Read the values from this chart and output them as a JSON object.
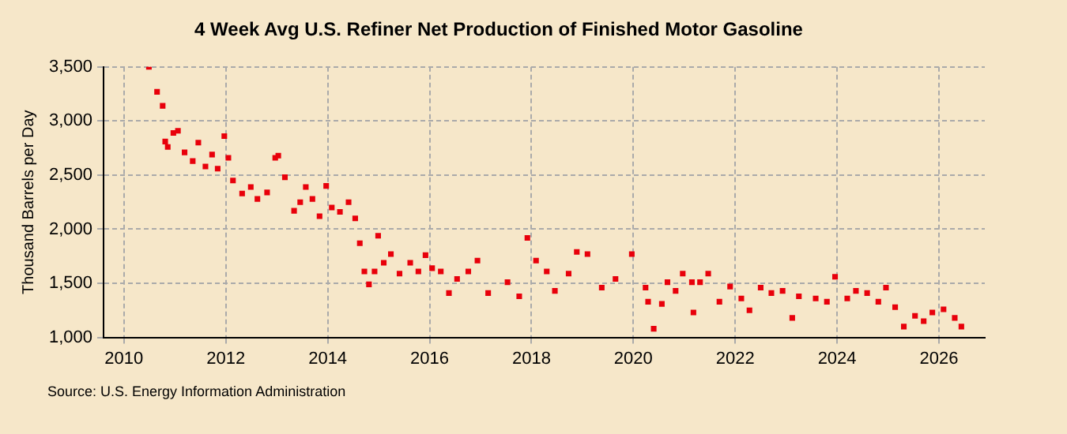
{
  "chart_data": {
    "type": "scatter",
    "title": "4 Week Avg U.S. Refiner Net Production of Finished Motor Gasoline",
    "ylabel": "Thousand Barrels per Day",
    "annotations": [
      "Source: U.S. Energy Information Administration"
    ],
    "x": [
      2010.49,
      2010.65,
      2010.76,
      2010.81,
      2010.86,
      2010.97,
      2011.06,
      2011.19,
      2011.35,
      2011.46,
      2011.6,
      2011.73,
      2011.84,
      2011.97,
      2012.05,
      2012.14,
      2012.32,
      2012.49,
      2012.62,
      2012.81,
      2012.97,
      2013.03,
      2013.16,
      2013.34,
      2013.46,
      2013.57,
      2013.7,
      2013.84,
      2013.97,
      2014.08,
      2014.24,
      2014.41,
      2014.54,
      2014.63,
      2014.72,
      2014.81,
      2014.92,
      2014.99,
      2015.1,
      2015.24,
      2015.41,
      2015.62,
      2015.78,
      2015.92,
      2016.05,
      2016.22,
      2016.38,
      2016.54,
      2016.76,
      2016.94,
      2017.15,
      2017.53,
      2017.76,
      2017.92,
      2018.09,
      2018.3,
      2018.46,
      2018.73,
      2018.89,
      2019.1,
      2019.38,
      2019.65,
      2019.97,
      2020.24,
      2020.29,
      2020.4,
      2020.56,
      2020.67,
      2020.83,
      2020.97,
      2021.15,
      2021.18,
      2021.31,
      2021.47,
      2021.69,
      2021.9,
      2022.12,
      2022.28,
      2022.5,
      2022.71,
      2022.93,
      2023.12,
      2023.25,
      2023.58,
      2023.8,
      2023.96,
      2024.2,
      2024.37,
      2024.59,
      2024.81,
      2024.96,
      2025.14,
      2025.31,
      2025.53,
      2025.7,
      2025.87,
      2026.09,
      2026.31,
      2026.44
    ],
    "series": [
      {
        "color": "#e8000b",
        "values": [
          3500,
          3270,
          3140,
          2810,
          2760,
          2890,
          2910,
          2710,
          2630,
          2800,
          2580,
          2690,
          2560,
          2860,
          2660,
          2450,
          2330,
          2390,
          2280,
          2340,
          2660,
          2680,
          2480,
          2170,
          2250,
          2390,
          2280,
          2120,
          2400,
          2200,
          2160,
          2250,
          2100,
          1870,
          1610,
          1490,
          1610,
          1940,
          1690,
          1770,
          1590,
          1690,
          1610,
          1760,
          1640,
          1610,
          1410,
          1540,
          1610,
          1710,
          1410,
          1510,
          1380,
          1920,
          1710,
          1610,
          1430,
          1590,
          1790,
          1770,
          1460,
          1540,
          1770,
          1460,
          1330,
          1080,
          1310,
          1510,
          1430,
          1590,
          1510,
          1230,
          1510,
          1590,
          1330,
          1470,
          1360,
          1250,
          1460,
          1410,
          1430,
          1180,
          1380,
          1360,
          1330,
          1560,
          1360,
          1430,
          1410,
          1330,
          1460,
          1280,
          1100,
          1200,
          1150,
          1230,
          1260,
          1180,
          1100
        ]
      }
    ],
    "xlim": [
      2009.6,
      2026.9
    ],
    "xticks": [
      2010,
      2012,
      2014,
      2016,
      2018,
      2020,
      2022,
      2024,
      2026
    ],
    "ylim": [
      1000,
      3500
    ],
    "yticks": [
      {
        "value": 1000,
        "label": "1,000"
      },
      {
        "value": 1500,
        "label": "1,500"
      },
      {
        "value": 2000,
        "label": "2,000"
      },
      {
        "value": 2500,
        "label": "2,500"
      },
      {
        "value": 3000,
        "label": "3,000"
      },
      {
        "value": 3500,
        "label": "3,500"
      }
    ],
    "grid": true,
    "marker": "square",
    "legend": false
  }
}
